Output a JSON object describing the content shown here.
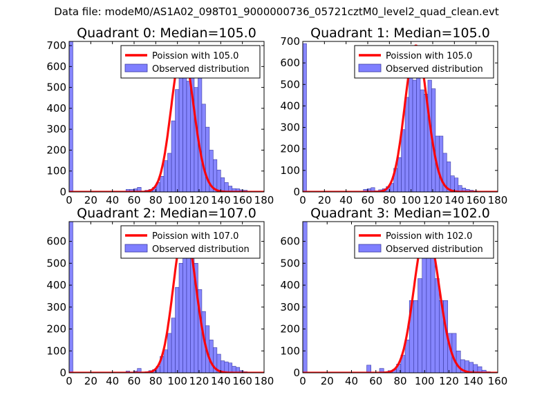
{
  "figure": {
    "suptitle": "Data file: modeM0/AS1A02_098T01_9000000736_05721cztM0_level2_quad_clean.evt"
  },
  "chart_data": [
    {
      "type": "bar",
      "title": "Quadrant 0: Median=105.0",
      "legend": {
        "location": "top-right",
        "entries": [
          "Poission with 105.0",
          "Observed distribution"
        ]
      },
      "xlim": [
        0,
        180
      ],
      "ylim": [
        0,
        720
      ],
      "xticks": [
        0,
        20,
        40,
        60,
        80,
        100,
        120,
        140,
        160,
        180
      ],
      "yticks": [
        0,
        100,
        200,
        300,
        400,
        500,
        600,
        700
      ],
      "poisson_mean": 105.0,
      "curve_peak": 680,
      "bin_width": 3.5,
      "series": [
        {
          "name": "Observed distribution",
          "color": "#7f7fff",
          "bins": [
            [
              0,
              720
            ],
            [
              52.5,
              12
            ],
            [
              56,
              12
            ],
            [
              59.5,
              15
            ],
            [
              63,
              22
            ],
            [
              70,
              8
            ],
            [
              73.5,
              12
            ],
            [
              77,
              22
            ],
            [
              80.5,
              45
            ],
            [
              84,
              75
            ],
            [
              87.5,
              150
            ],
            [
              91,
              185
            ],
            [
              94.5,
              340
            ],
            [
              98,
              490
            ],
            [
              101.5,
              570
            ],
            [
              105,
              600
            ],
            [
              108.5,
              530
            ],
            [
              112,
              545
            ],
            [
              115.5,
              500
            ],
            [
              119,
              570
            ],
            [
              122.5,
              420
            ],
            [
              126,
              310
            ],
            [
              129.5,
              200
            ],
            [
              133,
              155
            ],
            [
              136.5,
              105
            ],
            [
              140,
              68
            ],
            [
              143.5,
              45
            ],
            [
              147,
              28
            ],
            [
              150.5,
              16
            ],
            [
              154,
              15
            ],
            [
              157.5,
              10
            ],
            [
              161,
              8
            ]
          ]
        }
      ]
    },
    {
      "type": "bar",
      "title": "Quadrant 1: Median=105.0",
      "legend": {
        "location": "top-right",
        "entries": [
          "Poission with 105.0",
          "Observed distribution"
        ]
      },
      "xlim": [
        0,
        180
      ],
      "ylim": [
        0,
        700
      ],
      "xticks": [
        0,
        20,
        40,
        60,
        80,
        100,
        120,
        140,
        160,
        180
      ],
      "yticks": [
        0,
        100,
        200,
        300,
        400,
        500,
        600,
        700
      ],
      "poisson_mean": 105.0,
      "curve_peak": 680,
      "bin_width": 3.5,
      "series": [
        {
          "name": "Observed distribution",
          "color": "#7f7fff",
          "bins": [
            [
              0,
              690
            ],
            [
              56,
              12
            ],
            [
              59.5,
              15
            ],
            [
              63,
              20
            ],
            [
              66.5,
              5
            ],
            [
              70,
              10
            ],
            [
              73.5,
              15
            ],
            [
              77,
              25
            ],
            [
              80.5,
              40
            ],
            [
              84,
              110
            ],
            [
              87.5,
              160
            ],
            [
              91,
              290
            ],
            [
              94.5,
              440
            ],
            [
              98,
              535
            ],
            [
              101.5,
              520
            ],
            [
              105,
              600
            ],
            [
              108.5,
              475
            ],
            [
              112,
              455
            ],
            [
              115.5,
              520
            ],
            [
              119,
              480
            ],
            [
              122.5,
              260
            ],
            [
              126,
              260
            ],
            [
              129.5,
              180
            ],
            [
              133,
              140
            ],
            [
              136.5,
              75
            ],
            [
              140,
              65
            ],
            [
              143.5,
              30
            ],
            [
              147,
              18
            ],
            [
              150.5,
              12
            ],
            [
              154,
              8
            ],
            [
              157.5,
              5
            ]
          ]
        }
      ]
    },
    {
      "type": "bar",
      "title": "Quadrant 2: Median=107.0",
      "legend": {
        "location": "top-right",
        "entries": [
          "Poission with 107.0",
          "Observed distribution"
        ]
      },
      "xlim": [
        0,
        180
      ],
      "ylim": [
        0,
        690
      ],
      "xticks": [
        0,
        20,
        40,
        60,
        80,
        100,
        120,
        140,
        160,
        180
      ],
      "yticks": [
        0,
        100,
        200,
        300,
        400,
        500,
        600
      ],
      "poisson_mean": 107.0,
      "curve_peak": 660,
      "bin_width": 3.5,
      "series": [
        {
          "name": "Observed distribution",
          "color": "#7f7fff",
          "bins": [
            [
              0,
              700
            ],
            [
              52.5,
              8
            ],
            [
              59.5,
              8
            ],
            [
              63,
              20
            ],
            [
              70,
              5
            ],
            [
              73.5,
              10
            ],
            [
              77,
              15
            ],
            [
              80.5,
              30
            ],
            [
              84,
              75
            ],
            [
              87.5,
              105
            ],
            [
              91,
              180
            ],
            [
              94.5,
              250
            ],
            [
              98,
              390
            ],
            [
              101.5,
              500
            ],
            [
              105,
              565
            ],
            [
              108.5,
              600
            ],
            [
              112,
              520
            ],
            [
              115.5,
              500
            ],
            [
              119,
              380
            ],
            [
              122.5,
              280
            ],
            [
              126,
              215
            ],
            [
              129.5,
              150
            ],
            [
              133,
              115
            ],
            [
              136.5,
              85
            ],
            [
              140,
              55
            ],
            [
              143.5,
              50
            ],
            [
              147,
              45
            ],
            [
              150.5,
              30
            ],
            [
              154,
              25
            ],
            [
              157.5,
              10
            ],
            [
              161,
              5
            ]
          ]
        }
      ]
    },
    {
      "type": "bar",
      "title": "Quadrant 3: Median=102.0",
      "legend": {
        "location": "top-right",
        "entries": [
          "Poission with 102.0",
          "Observed distribution"
        ]
      },
      "xlim": [
        0,
        160
      ],
      "ylim": [
        0,
        690
      ],
      "xticks": [
        0,
        20,
        40,
        60,
        80,
        100,
        120,
        140,
        160
      ],
      "yticks": [
        0,
        100,
        200,
        300,
        400,
        500,
        600
      ],
      "poisson_mean": 102.0,
      "curve_peak": 660,
      "bin_width": 3.5,
      "series": [
        {
          "name": "Observed distribution",
          "color": "#7f7fff",
          "bins": [
            [
              0,
              700
            ],
            [
              52.5,
              35
            ],
            [
              63,
              20
            ],
            [
              66.5,
              5
            ],
            [
              70,
              10
            ],
            [
              73.5,
              15
            ],
            [
              77,
              40
            ],
            [
              80.5,
              80
            ],
            [
              84,
              150
            ],
            [
              87.5,
              330
            ],
            [
              91,
              330
            ],
            [
              94.5,
              430
            ],
            [
              98,
              540
            ],
            [
              101.5,
              540
            ],
            [
              105,
              530
            ],
            [
              108.5,
              430
            ],
            [
              112,
              330
            ],
            [
              115.5,
              330
            ],
            [
              119,
              180
            ],
            [
              122.5,
              180
            ],
            [
              126,
              100
            ],
            [
              129.5,
              60
            ],
            [
              133,
              55
            ],
            [
              136.5,
              48
            ],
            [
              140,
              38
            ],
            [
              143.5,
              28
            ],
            [
              147,
              12
            ],
            [
              150.5,
              5
            ]
          ]
        }
      ]
    }
  ]
}
